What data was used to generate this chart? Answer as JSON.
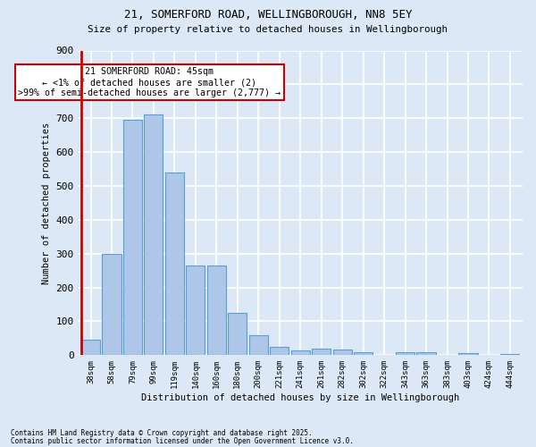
{
  "title_line1": "21, SOMERFORD ROAD, WELLINGBOROUGH, NN8 5EY",
  "title_line2": "Size of property relative to detached houses in Wellingborough",
  "xlabel": "Distribution of detached houses by size in Wellingborough",
  "ylabel": "Number of detached properties",
  "categories": [
    "38sqm",
    "58sqm",
    "79sqm",
    "99sqm",
    "119sqm",
    "140sqm",
    "160sqm",
    "180sqm",
    "200sqm",
    "221sqm",
    "241sqm",
    "261sqm",
    "282sqm",
    "302sqm",
    "322sqm",
    "343sqm",
    "363sqm",
    "383sqm",
    "403sqm",
    "424sqm",
    "444sqm"
  ],
  "values": [
    45,
    300,
    695,
    710,
    540,
    265,
    265,
    125,
    60,
    25,
    15,
    20,
    18,
    8,
    0,
    10,
    8,
    0,
    5,
    0,
    3
  ],
  "bar_color": "#aec6e8",
  "bar_edge_color": "#5a9fd4",
  "highlight_index": 0,
  "highlight_bar_color": "#aec6e8",
  "highlight_edge_color": "#5a9fd4",
  "highlight_line_color": "#cc0000",
  "annotation_text": "21 SOMERFORD ROAD: 45sqm\n← <1% of detached houses are smaller (2)\n>99% of semi-detached houses are larger (2,777) →",
  "annotation_box_color": "#ffffff",
  "annotation_edge_color": "#cc0000",
  "background_color": "#dce8f5",
  "plot_bg_color": "#dce8f5",
  "grid_color": "#ffffff",
  "footnote_line1": "Contains HM Land Registry data © Crown copyright and database right 2025.",
  "footnote_line2": "Contains public sector information licensed under the Open Government Licence v3.0.",
  "ylim": [
    0,
    900
  ],
  "yticks": [
    0,
    100,
    200,
    300,
    400,
    500,
    600,
    700,
    800,
    900
  ]
}
